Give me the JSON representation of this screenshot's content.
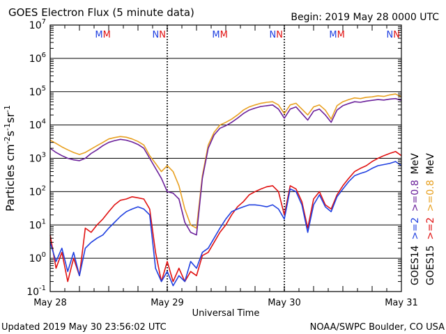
{
  "header": {
    "title": "GOES Electron Flux (5 minute data)",
    "begin": "Begin: 2019 May 28 0000 UTC"
  },
  "footer": {
    "updated": "Updated 2019 May 30 23:56:02 UTC",
    "credit": "NOAA/SWPC Boulder, CO USA"
  },
  "chart_data": {
    "type": "line",
    "title": "GOES Electron Flux (5 minute data)",
    "xlabel": "Universal Time",
    "ylabel_parts": [
      "Particles cm",
      "-2",
      "s",
      "-1",
      "sr",
      "-1"
    ],
    "y_scale": "log",
    "ylim": [
      0.1,
      10000000
    ],
    "y_ticks": [
      {
        "base": "10",
        "exp": "7",
        "value": 10000000
      },
      {
        "base": "10",
        "exp": "6",
        "value": 1000000
      },
      {
        "base": "10",
        "exp": "5",
        "value": 100000
      },
      {
        "base": "10",
        "exp": "4",
        "value": 10000
      },
      {
        "base": "10",
        "exp": "3",
        "value": 1000
      },
      {
        "base": "10",
        "exp": "2",
        "value": 100
      },
      {
        "base": "10",
        "exp": "1",
        "value": 10
      },
      {
        "base": "10",
        "exp": "0",
        "value": 1
      },
      {
        "base": "10",
        "exp": "-1",
        "value": 0.1
      }
    ],
    "x_ticks": [
      {
        "label": "May 28",
        "day": 0
      },
      {
        "label": "May 29",
        "day": 1
      },
      {
        "label": "May 30",
        "day": 2
      },
      {
        "label": "May 31",
        "day": 3
      }
    ],
    "threshold": 1000,
    "noon_markers": [
      {
        "day": 0.45,
        "letters": [
          {
            "text": "M",
            "color": "#1f3fe0"
          },
          {
            "text": "M",
            "color": "#e01010"
          }
        ]
      },
      {
        "day": 0.93,
        "letters": [
          {
            "text": "N",
            "color": "#1f3fe0"
          },
          {
            "text": "N",
            "color": "#e01010"
          }
        ]
      },
      {
        "day": 1.45,
        "letters": [
          {
            "text": "M",
            "color": "#1f3fe0"
          },
          {
            "text": "M",
            "color": "#e01010"
          }
        ]
      },
      {
        "day": 1.93,
        "letters": [
          {
            "text": "N",
            "color": "#1f3fe0"
          },
          {
            "text": "N",
            "color": "#e01010"
          }
        ]
      },
      {
        "day": 2.45,
        "letters": [
          {
            "text": "M",
            "color": "#1f3fe0"
          },
          {
            "text": "M",
            "color": "#e01010"
          }
        ]
      },
      {
        "day": 2.93,
        "letters": [
          {
            "text": "N",
            "color": "#1f3fe0"
          },
          {
            "text": "N",
            "color": "#e01010"
          }
        ]
      }
    ],
    "legend": {
      "placement": "right-side-vertical",
      "satellites": [
        {
          "name": "GOES14",
          "entries": [
            {
              "text": ">=2",
              "color": "#1f3fe0"
            },
            {
              "text": ">=0.8",
              "color": "#6a1f9a"
            },
            {
              "text": "MeV",
              "color": "#000000"
            }
          ]
        },
        {
          "name": "GOES15",
          "entries": [
            {
              "text": ">=2",
              "color": "#e01010"
            },
            {
              "text": ">=0.8",
              "color": "#e8a020"
            },
            {
              "text": "MeV",
              "color": "#000000"
            }
          ]
        }
      ]
    },
    "series": [
      {
        "name": "GOES15 >=0.8 MeV",
        "color": "#e8a020",
        "x": [
          0,
          0.05,
          0.1,
          0.15,
          0.2,
          0.25,
          0.3,
          0.35,
          0.4,
          0.45,
          0.5,
          0.55,
          0.6,
          0.65,
          0.7,
          0.75,
          0.8,
          0.85,
          0.9,
          0.95,
          1.0,
          1.05,
          1.1,
          1.15,
          1.2,
          1.25,
          1.3,
          1.35,
          1.4,
          1.45,
          1.5,
          1.55,
          1.6,
          1.65,
          1.7,
          1.75,
          1.8,
          1.85,
          1.9,
          1.95,
          2.0,
          2.05,
          2.1,
          2.15,
          2.2,
          2.25,
          2.3,
          2.35,
          2.4,
          2.45,
          2.5,
          2.55,
          2.6,
          2.65,
          2.7,
          2.75,
          2.8,
          2.85,
          2.9,
          2.95,
          3.0
        ],
        "values": [
          3500,
          2800,
          2200,
          1800,
          1500,
          1300,
          1500,
          1900,
          2400,
          3000,
          3800,
          4200,
          4500,
          4300,
          3800,
          3200,
          2500,
          1200,
          700,
          400,
          600,
          400,
          150,
          30,
          10,
          8,
          300,
          2500,
          6000,
          10000,
          12000,
          15000,
          20000,
          28000,
          35000,
          40000,
          45000,
          48000,
          50000,
          40000,
          22000,
          40000,
          45000,
          30000,
          20000,
          35000,
          40000,
          28000,
          15000,
          38000,
          50000,
          58000,
          65000,
          62000,
          68000,
          70000,
          75000,
          72000,
          80000,
          85000,
          70000
        ]
      },
      {
        "name": "GOES14 >=0.8 MeV",
        "color": "#6a1f9a",
        "x": [
          0,
          0.05,
          0.1,
          0.15,
          0.2,
          0.25,
          0.3,
          0.35,
          0.4,
          0.45,
          0.5,
          0.55,
          0.6,
          0.65,
          0.7,
          0.75,
          0.8,
          0.85,
          0.9,
          0.95,
          1.0,
          1.05,
          1.1,
          1.15,
          1.2,
          1.25,
          1.3,
          1.35,
          1.4,
          1.45,
          1.5,
          1.55,
          1.6,
          1.65,
          1.7,
          1.75,
          1.8,
          1.85,
          1.9,
          1.95,
          2.0,
          2.05,
          2.1,
          2.15,
          2.2,
          2.25,
          2.3,
          2.35,
          2.4,
          2.45,
          2.5,
          2.55,
          2.6,
          2.65,
          2.7,
          2.75,
          2.8,
          2.85,
          2.9,
          2.95,
          3.0
        ],
        "values": [
          2000,
          1500,
          1200,
          1000,
          900,
          850,
          1000,
          1400,
          1800,
          2400,
          3000,
          3400,
          3700,
          3500,
          3100,
          2600,
          2000,
          1000,
          500,
          250,
          100,
          90,
          60,
          12,
          6,
          5,
          250,
          2000,
          5000,
          8000,
          9500,
          12000,
          16000,
          22000,
          28000,
          32000,
          36000,
          38000,
          40000,
          30000,
          16000,
          30000,
          35000,
          22000,
          14000,
          26000,
          30000,
          20000,
          12000,
          28000,
          38000,
          44000,
          50000,
          48000,
          52000,
          55000,
          58000,
          56000,
          60000,
          62000,
          55000
        ]
      },
      {
        "name": "GOES15 >=2 MeV",
        "color": "#e01010",
        "x": [
          0,
          0.05,
          0.1,
          0.15,
          0.2,
          0.25,
          0.3,
          0.35,
          0.4,
          0.45,
          0.5,
          0.55,
          0.6,
          0.65,
          0.7,
          0.75,
          0.8,
          0.85,
          0.9,
          0.95,
          1.0,
          1.05,
          1.1,
          1.15,
          1.2,
          1.25,
          1.3,
          1.35,
          1.4,
          1.45,
          1.5,
          1.55,
          1.6,
          1.65,
          1.7,
          1.75,
          1.8,
          1.85,
          1.9,
          1.95,
          2.0,
          2.05,
          2.1,
          2.15,
          2.2,
          2.25,
          2.3,
          2.35,
          2.4,
          2.45,
          2.5,
          2.55,
          2.6,
          2.65,
          2.7,
          2.75,
          2.8,
          2.85,
          2.9,
          2.95,
          3.0
        ],
        "values": [
          5,
          0.5,
          1.5,
          0.2,
          1,
          0.3,
          8,
          6,
          10,
          15,
          25,
          40,
          55,
          60,
          70,
          65,
          60,
          30,
          1.5,
          0.2,
          0.8,
          0.2,
          0.5,
          0.2,
          0.4,
          0.3,
          1.2,
          1.5,
          3,
          6,
          10,
          20,
          35,
          50,
          80,
          100,
          120,
          140,
          150,
          100,
          20,
          150,
          120,
          50,
          8,
          60,
          100,
          40,
          30,
          80,
          150,
          250,
          400,
          500,
          600,
          800,
          1000,
          1200,
          1400,
          1600,
          1200
        ]
      },
      {
        "name": "GOES14 >=2 MeV",
        "color": "#1f3fe0",
        "x": [
          0,
          0.05,
          0.1,
          0.15,
          0.2,
          0.25,
          0.3,
          0.35,
          0.4,
          0.45,
          0.5,
          0.55,
          0.6,
          0.65,
          0.7,
          0.75,
          0.8,
          0.85,
          0.9,
          0.95,
          1.0,
          1.05,
          1.1,
          1.15,
          1.2,
          1.25,
          1.3,
          1.35,
          1.4,
          1.45,
          1.5,
          1.55,
          1.6,
          1.65,
          1.7,
          1.75,
          1.8,
          1.85,
          1.9,
          1.95,
          2.0,
          2.05,
          2.1,
          2.15,
          2.2,
          2.25,
          2.3,
          2.35,
          2.4,
          2.45,
          2.5,
          2.55,
          2.6,
          2.65,
          2.7,
          2.75,
          2.8,
          2.85,
          2.9,
          2.95,
          3.0
        ],
        "values": [
          3,
          0.8,
          2,
          0.4,
          1.5,
          0.3,
          2,
          3,
          4,
          5,
          8,
          12,
          18,
          25,
          30,
          35,
          30,
          20,
          0.5,
          0.2,
          0.4,
          0.15,
          0.3,
          0.2,
          0.8,
          0.5,
          1.5,
          2,
          4,
          8,
          15,
          25,
          30,
          35,
          40,
          40,
          38,
          35,
          40,
          30,
          15,
          120,
          100,
          40,
          6,
          40,
          80,
          35,
          25,
          70,
          120,
          200,
          300,
          350,
          400,
          500,
          600,
          650,
          700,
          800,
          600
        ]
      }
    ]
  }
}
